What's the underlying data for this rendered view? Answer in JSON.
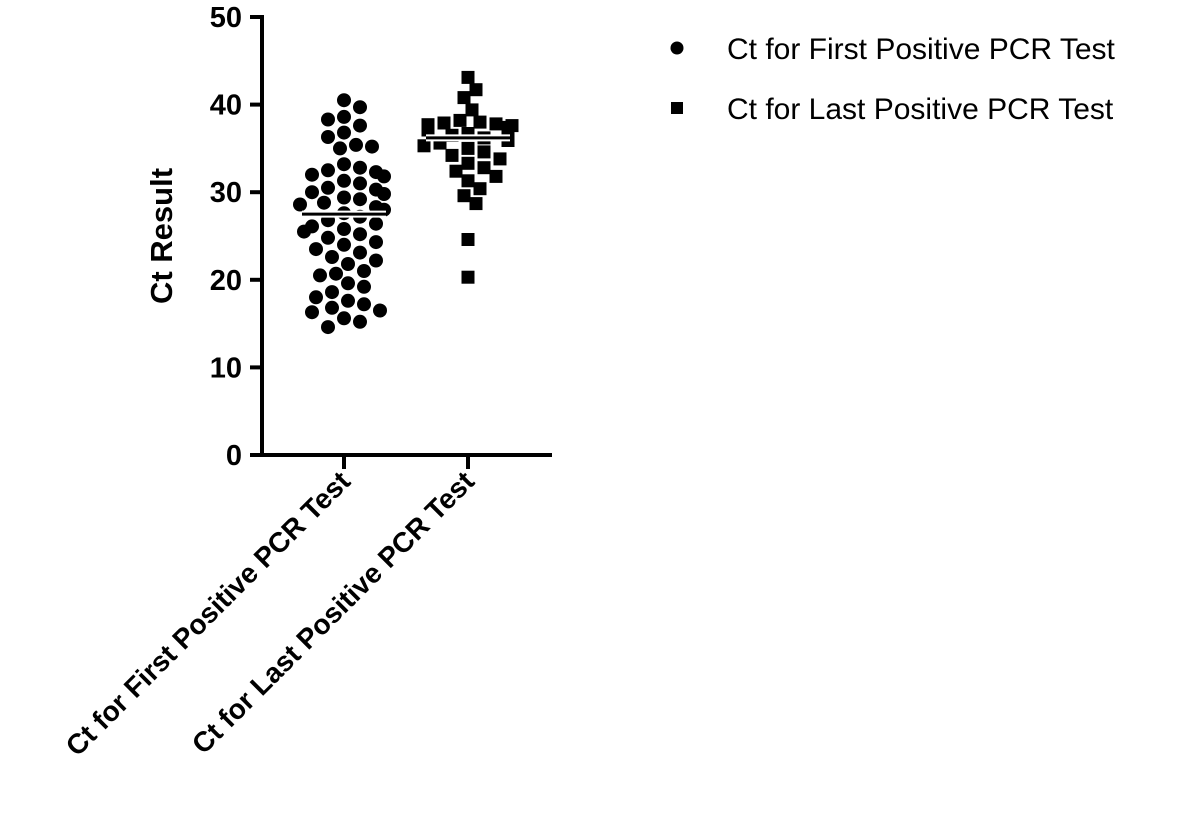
{
  "chart_data": {
    "type": "scatter",
    "title": "",
    "ylabel": "Ct Result",
    "xlabel": "",
    "ylim": [
      0,
      50
    ],
    "yticks": [
      0,
      10,
      20,
      30,
      40,
      50
    ],
    "grid": false,
    "legend_position": "top-right",
    "categories": [
      "Ct for First Positive PCR Test",
      "Ct for Last Positive PCR Test"
    ],
    "series": [
      {
        "name": "Ct for First Positive PCR Test",
        "marker": "circle",
        "color": "#000000",
        "mean": 27.5,
        "values": [
          40.5,
          39.7,
          38.6,
          38.3,
          37.6,
          36.8,
          36.3,
          35.4,
          35.2,
          35.0,
          33.2,
          32.8,
          32.5,
          32.3,
          32.0,
          31.8,
          31.3,
          31.0,
          30.5,
          30.3,
          30.0,
          29.8,
          29.4,
          29.2,
          28.8,
          28.6,
          28.3,
          28.0,
          27.6,
          27.2,
          26.8,
          26.4,
          26.1,
          25.8,
          25.5,
          25.2,
          24.8,
          24.3,
          24.0,
          23.5,
          23.1,
          22.6,
          22.2,
          21.8,
          21.0,
          20.7,
          20.5,
          19.6,
          19.2,
          18.6,
          18.0,
          17.6,
          17.2,
          16.8,
          16.5,
          16.3,
          15.6,
          15.2,
          14.6
        ]
      },
      {
        "name": "Ct for Last Positive PCR Test",
        "marker": "square",
        "color": "#000000",
        "mean": 36.2,
        "values": [
          43.1,
          41.7,
          40.8,
          39.4,
          38.2,
          38.0,
          37.9,
          37.8,
          37.7,
          37.6,
          37.5,
          37.4,
          37.3,
          37.2,
          37.1,
          36.9,
          36.7,
          36.5,
          36.2,
          35.9,
          35.6,
          35.3,
          35.0,
          34.6,
          34.2,
          33.8,
          33.3,
          32.8,
          32.4,
          31.8,
          31.3,
          30.4,
          29.6,
          28.7,
          24.6,
          20.3
        ]
      }
    ]
  }
}
